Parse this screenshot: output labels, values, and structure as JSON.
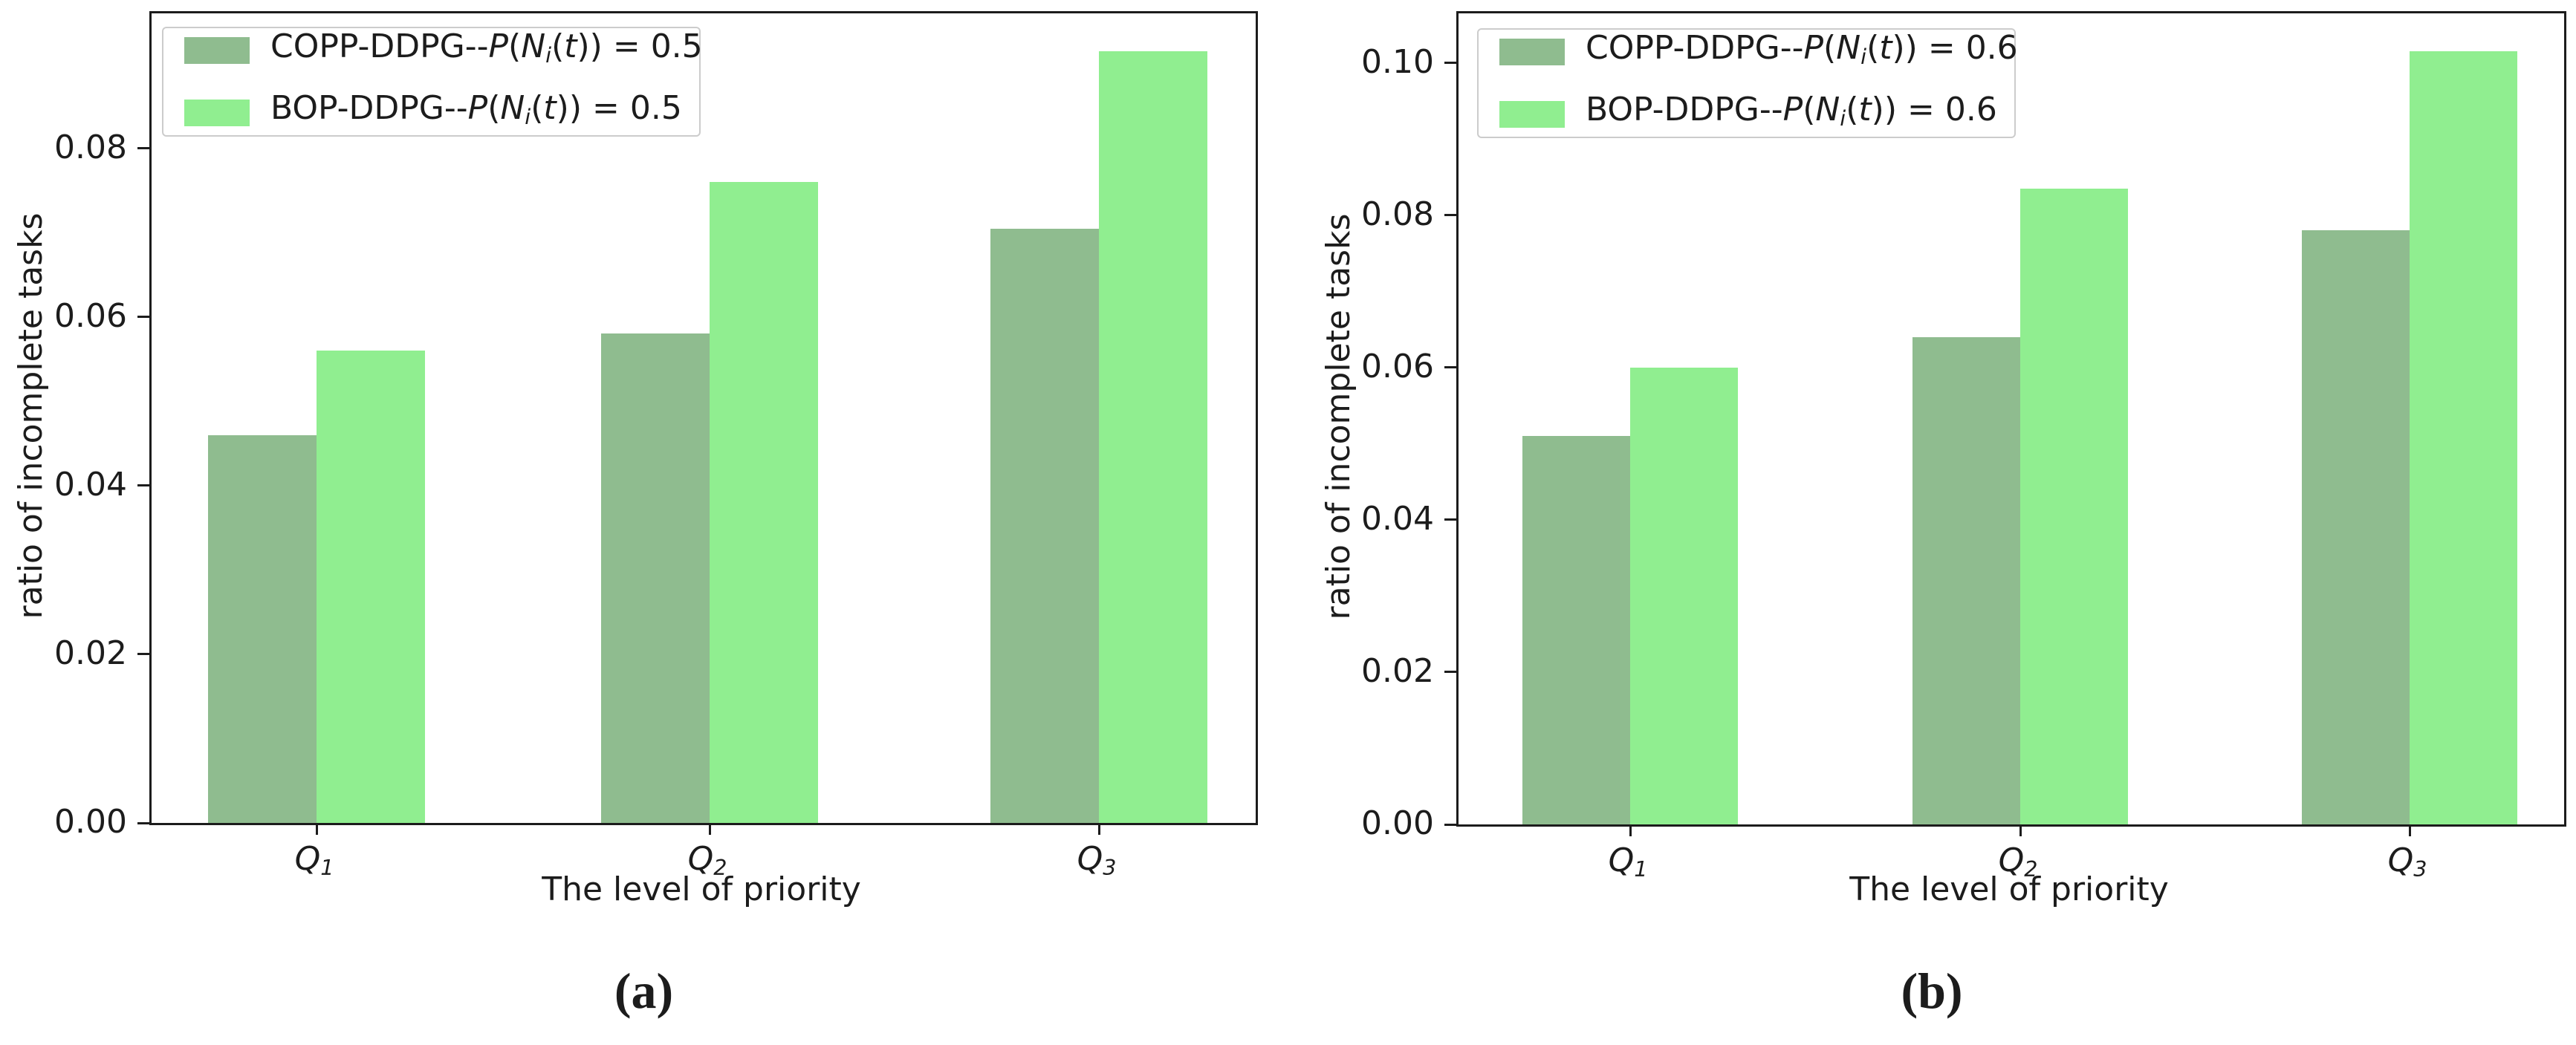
{
  "figure": {
    "caption_a": "(a)",
    "caption_b": "(b)",
    "bar_colors": {
      "copp": "#8FBC8F",
      "bop": "#90EE90"
    },
    "axis_color": "#1c1c1c"
  },
  "chart_data": [
    {
      "type": "bar",
      "title": "",
      "categories": [
        "Q1",
        "Q2",
        "Q3"
      ],
      "series": [
        {
          "name": "COPP-DDPG--P(N_i(t)) = 0.5",
          "color": "#8FBC8F",
          "values": [
            0.046,
            0.058,
            0.0705
          ]
        },
        {
          "name": "BOP-DDPG--P(N_i(t)) = 0.5",
          "color": "#90EE90",
          "values": [
            0.056,
            0.076,
            0.0915
          ]
        }
      ],
      "xlabel": "The level of priority",
      "ylabel": "ratio of incomplete tasks",
      "ylim": [
        0,
        0.096
      ],
      "yticks": [
        0.0,
        0.02,
        0.04,
        0.06,
        0.08
      ],
      "legend_position": "upper left",
      "grid": false,
      "caption": "(a)"
    },
    {
      "type": "bar",
      "title": "",
      "categories": [
        "Q1",
        "Q2",
        "Q3"
      ],
      "series": [
        {
          "name": "COPP-DDPG--P(N_i(t)) = 0.6",
          "color": "#8FBC8F",
          "values": [
            0.051,
            0.064,
            0.078
          ]
        },
        {
          "name": "BOP-DDPG--P(N_i(t)) = 0.6",
          "color": "#90EE90",
          "values": [
            0.06,
            0.0835,
            0.1015
          ]
        }
      ],
      "xlabel": "The level of priority",
      "ylabel": "ratio of incomplete tasks",
      "ylim": [
        0,
        0.1065
      ],
      "yticks": [
        0.0,
        0.02,
        0.04,
        0.06,
        0.08,
        0.1
      ],
      "legend_position": "upper left",
      "grid": false,
      "caption": "(b)"
    }
  ]
}
